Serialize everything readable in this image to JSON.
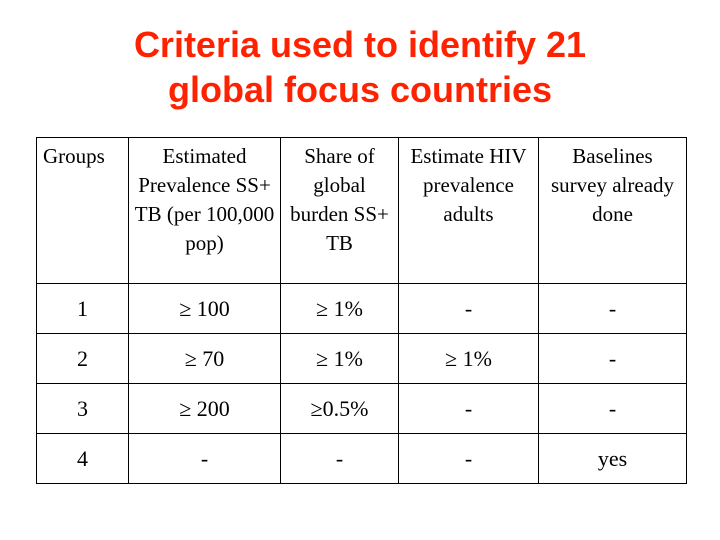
{
  "title": {
    "line1": "Criteria used to identify 21",
    "line2": "global focus countries",
    "color": "#ff2200"
  },
  "table": {
    "headers": [
      "Groups",
      "Estimated Prevalence SS+ TB (per 100,000 pop)",
      "Share of global burden SS+ TB",
      "Estimate HIV prevalence adults",
      "Baselines survey already done"
    ],
    "rows": [
      [
        "1",
        "≥ 100",
        "≥ 1%",
        "-",
        "-"
      ],
      [
        "2",
        "≥ 70",
        "≥ 1%",
        "≥ 1%",
        "-"
      ],
      [
        "3",
        "≥ 200",
        "≥0.5%",
        "-",
        "-"
      ],
      [
        "4",
        "-",
        "-",
        "-",
        "yes"
      ]
    ]
  }
}
